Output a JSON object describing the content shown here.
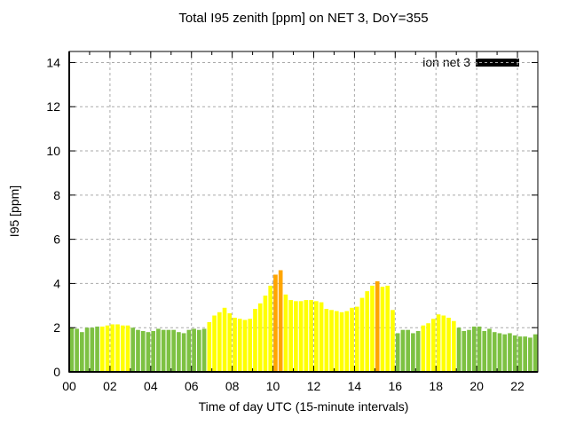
{
  "chart_data": {
    "type": "bar",
    "title": "Total I95 zenith [ppm] on NET 3, DoY=355",
    "xlabel": "Time of day UTC (15-minute intervals)",
    "ylabel": "I95 [ppm]",
    "legend": {
      "label": "ion net 3",
      "swatch_color": "#000000",
      "position": "top-right-inside"
    },
    "ylim": [
      0,
      14.5
    ],
    "yticks": [
      0,
      2,
      4,
      6,
      8,
      10,
      12,
      14
    ],
    "xticks": [
      "00",
      "02",
      "04",
      "06",
      "08",
      "10",
      "12",
      "14",
      "16",
      "18",
      "20",
      "22"
    ],
    "x_hours_span": 23,
    "interval_minutes": 15,
    "grid": "dashed-gray",
    "palette": {
      "green": "#7DC142",
      "yellow": "#FFFF00",
      "orange": "#FFA500",
      "grid": "#AAAAAA",
      "axis": "#000000",
      "background": "#FFFFFF"
    },
    "times": [
      "00:00",
      "00:15",
      "00:30",
      "00:45",
      "01:00",
      "01:15",
      "01:30",
      "01:45",
      "02:00",
      "02:15",
      "02:30",
      "02:45",
      "03:00",
      "03:15",
      "03:30",
      "03:45",
      "04:00",
      "04:15",
      "04:30",
      "04:45",
      "05:00",
      "05:15",
      "05:30",
      "05:45",
      "06:00",
      "06:15",
      "06:30",
      "06:45",
      "07:00",
      "07:15",
      "07:30",
      "07:45",
      "08:00",
      "08:15",
      "08:30",
      "08:45",
      "09:00",
      "09:15",
      "09:30",
      "09:45",
      "10:00",
      "10:15",
      "10:30",
      "10:45",
      "11:00",
      "11:15",
      "11:30",
      "11:45",
      "12:00",
      "12:15",
      "12:30",
      "12:45",
      "13:00",
      "13:15",
      "13:30",
      "13:45",
      "14:00",
      "14:15",
      "14:30",
      "14:45",
      "15:00",
      "15:15",
      "15:30",
      "15:45",
      "16:00",
      "16:15",
      "16:30",
      "16:45",
      "17:00",
      "17:15",
      "17:30",
      "17:45",
      "18:00",
      "18:15",
      "18:30",
      "18:45",
      "19:00",
      "19:15",
      "19:30",
      "19:45",
      "20:00",
      "20:15",
      "20:30",
      "20:45",
      "21:00",
      "21:15",
      "21:30",
      "21:45",
      "22:00",
      "22:15",
      "22:30",
      "22:45"
    ],
    "values": [
      2.0,
      1.95,
      1.8,
      2.0,
      2.0,
      2.05,
      2.05,
      2.1,
      2.15,
      2.15,
      2.1,
      2.1,
      2.0,
      1.9,
      1.85,
      1.8,
      1.85,
      1.95,
      1.9,
      1.9,
      1.9,
      1.8,
      1.75,
      1.9,
      1.95,
      1.9,
      1.95,
      2.25,
      2.55,
      2.7,
      2.9,
      2.65,
      2.45,
      2.4,
      2.35,
      2.4,
      2.85,
      3.1,
      3.45,
      3.9,
      4.4,
      4.6,
      3.5,
      3.25,
      3.2,
      3.2,
      3.25,
      3.25,
      3.2,
      3.15,
      2.85,
      2.8,
      2.75,
      2.7,
      2.75,
      2.9,
      2.95,
      3.35,
      3.65,
      3.9,
      4.1,
      3.85,
      3.9,
      2.8,
      1.75,
      1.9,
      1.9,
      1.75,
      1.85,
      2.1,
      2.2,
      2.4,
      2.6,
      2.55,
      2.45,
      2.3,
      2.0,
      1.85,
      1.9,
      2.05,
      2.05,
      1.85,
      1.95,
      1.8,
      1.75,
      1.7,
      1.75,
      1.65,
      1.6,
      1.6,
      1.55,
      1.7
    ],
    "bar_colors": [
      "green",
      "green",
      "green",
      "green",
      "green",
      "green",
      "yellow",
      "yellow",
      "yellow",
      "yellow",
      "yellow",
      "yellow",
      "green",
      "green",
      "green",
      "green",
      "green",
      "green",
      "green",
      "green",
      "green",
      "green",
      "green",
      "green",
      "green",
      "green",
      "green",
      "yellow",
      "yellow",
      "yellow",
      "yellow",
      "yellow",
      "yellow",
      "yellow",
      "yellow",
      "yellow",
      "yellow",
      "yellow",
      "yellow",
      "yellow",
      "orange",
      "orange",
      "yellow",
      "yellow",
      "yellow",
      "yellow",
      "yellow",
      "yellow",
      "yellow",
      "yellow",
      "yellow",
      "yellow",
      "yellow",
      "yellow",
      "yellow",
      "yellow",
      "yellow",
      "yellow",
      "yellow",
      "yellow",
      "orange",
      "yellow",
      "yellow",
      "yellow",
      "green",
      "green",
      "green",
      "green",
      "green",
      "yellow",
      "yellow",
      "yellow",
      "yellow",
      "yellow",
      "yellow",
      "yellow",
      "green",
      "green",
      "green",
      "green",
      "green",
      "green",
      "green",
      "green",
      "green",
      "green",
      "green",
      "green",
      "green",
      "green",
      "green",
      "green"
    ]
  }
}
